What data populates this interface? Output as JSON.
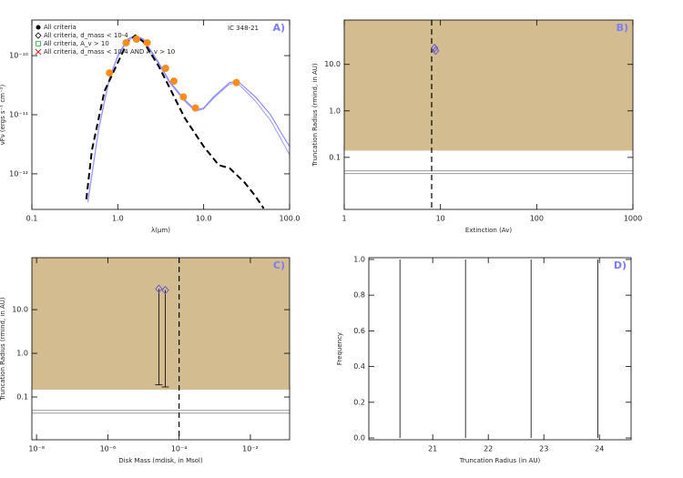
{
  "chart_data": [
    {
      "type": "line",
      "panel_label": "A)",
      "annotation": "IC 348-21",
      "xlabel": "λ(μm)",
      "ylabel": "νFν (ergs s⁻¹ cm⁻²)",
      "xlog": true,
      "ylog": true,
      "xlim": [
        0.1,
        100
      ],
      "ylim": [
        2.5e-13,
        4e-10
      ],
      "xticks": [
        0.1,
        {
          "value": 1,
          "label": "1.0"
        },
        {
          "value": 10,
          "label": "10.0"
        },
        {
          "value": 100,
          "label": "100.0"
        }
      ],
      "yticks": [
        {
          "value": 1e-12,
          "label": "10⁻¹²"
        },
        {
          "value": 1e-11,
          "label": "10⁻¹¹"
        },
        {
          "value": 1e-10,
          "label": "10⁻¹⁰"
        }
      ],
      "legend": [
        {
          "label": "All criteria",
          "marker": "dot",
          "color": "#000000"
        },
        {
          "label": "All criteria, d_mass < 10-4",
          "marker": "diamond",
          "color": "#000000"
        },
        {
          "label": "All criteria, A_v > 10",
          "marker": "square",
          "color": "#33aa33"
        },
        {
          "label": "All criteria, d_mass < 10-4 AND A_v > 10",
          "marker": "x",
          "color": "#dd2222"
        }
      ],
      "series": [
        {
          "color": "#7b7bff",
          "x": [
            0.45,
            0.6,
            0.8,
            1.0,
            1.3,
            1.6,
            2.0,
            3,
            4,
            6,
            8,
            10,
            13,
            20,
            25,
            40,
            60,
            80,
            100
          ],
          "values": [
            3.5e-13,
            5.9e-12,
            4.2e-11,
            1e-10,
            1.9e-10,
            2.2e-10,
            1.9e-10,
            7.6e-11,
            3.7e-11,
            1.8e-11,
            1.2e-11,
            1.3e-11,
            2e-11,
            3.5e-11,
            3.7e-11,
            2e-11,
            1e-11,
            4.9e-12,
            2.9e-12
          ]
        },
        {
          "color": "#9999ff",
          "x": [
            0.45,
            0.6,
            0.8,
            1.0,
            1.3,
            1.6,
            2.0,
            3,
            4,
            6,
            8,
            10,
            13,
            20,
            25,
            40,
            60,
            80,
            100
          ],
          "values": [
            3.3e-13,
            5.6e-12,
            4e-11,
            9.6e-11,
            1.8e-10,
            2.1e-10,
            1.8e-10,
            7.2e-11,
            3.5e-11,
            1.7e-11,
            1.15e-11,
            1.25e-11,
            1.9e-11,
            3.3e-11,
            3.4e-11,
            1.7e-11,
            8e-12,
            3.8e-12,
            2.1e-12
          ]
        },
        {
          "color": "#000000",
          "dash": true,
          "x": [
            0.43,
            0.5,
            0.7,
            1.0,
            1.3,
            1.6,
            2.0,
            3,
            4,
            6,
            10,
            15,
            20,
            30,
            40,
            50
          ],
          "values": [
            3.7e-13,
            2.5e-12,
            2.5e-11,
            7.6e-11,
            1.7e-10,
            2.2e-10,
            1.7e-10,
            6.6e-11,
            2.9e-11,
            8.9e-12,
            2.9e-12,
            1.4e-12,
            1.25e-12,
            7.1e-13,
            4.2e-13,
            2.6e-13
          ]
        },
        {
          "color": "#ff8c1a",
          "marker": "circle",
          "x": [
            0.8,
            1.25,
            1.65,
            2.2,
            3.6,
            4.5,
            5.8,
            8.0,
            24
          ],
          "values": [
            5.1e-11,
            1.65e-10,
            1.9e-10,
            1.65e-10,
            6.1e-11,
            3.7e-11,
            2e-11,
            1.3e-11,
            3.5e-11
          ]
        }
      ]
    },
    {
      "type": "scatter",
      "panel_label": "B)",
      "xlabel": "Extinction (Av)",
      "ylabel": "Truncation Radius (rmind, in AU)",
      "xlog": true,
      "ylog": true,
      "xlim": [
        1,
        1000
      ],
      "ylim": [
        0.0076,
        90
      ],
      "xticks": [
        1,
        10,
        100,
        1000
      ],
      "yticks": [
        0.1,
        {
          "value": 1,
          "label": "1.0"
        },
        {
          "value": 10,
          "label": "10.0"
        }
      ],
      "shade_min": 0.14,
      "hline": 0.048,
      "vline": 8.1,
      "series": [
        {
          "color": "#6a5acd",
          "x": [
            8.7,
            8.9
          ],
          "values": [
            22.5,
            19.7
          ]
        }
      ]
    },
    {
      "type": "scatter",
      "panel_label": "C)",
      "xlabel": "Disk Mass (mdisk, in Msol)",
      "ylabel": "Truncation Radius (rmind, in AU)",
      "xlog": true,
      "ylog": true,
      "xlim": [
        7.4e-09,
        0.126
      ],
      "ylim": [
        0.0105,
        155
      ],
      "xticks": [
        {
          "value": 1e-08,
          "label": "10⁻⁸"
        },
        {
          "value": 1e-06,
          "label": "10⁻⁶"
        },
        {
          "value": 0.0001,
          "label": "10⁻⁴"
        },
        {
          "value": 0.01,
          "label": "10⁻²"
        }
      ],
      "yticks": [
        0.1,
        {
          "value": 1,
          "label": "1.0"
        },
        {
          "value": 10,
          "label": "10.0"
        }
      ],
      "shade_min": 0.147,
      "hline": 0.046,
      "vline": 0.0001,
      "series": [
        {
          "color": "#6a5acd",
          "x": [
            2.7e-05,
            4.1e-05
          ],
          "values": [
            30,
            28
          ],
          "lower": [
            0.19,
            0.17
          ]
        }
      ]
    },
    {
      "type": "stem",
      "panel_label": "D)",
      "xlabel": "Truncation Radius (in AU)",
      "ylabel": "Frequency",
      "xlim": [
        19.85,
        24.57
      ],
      "ylim": [
        -0.01,
        1.01
      ],
      "xticks": [
        21,
        22,
        23,
        24
      ],
      "yticks": [
        {
          "value": 0,
          "label": "0.0"
        },
        0.2,
        0.4,
        0.6,
        0.8,
        {
          "value": 1,
          "label": "1.0"
        }
      ],
      "x": [
        20.41,
        21.59,
        22.77,
        23.97
      ],
      "values": [
        1,
        1,
        1,
        1
      ]
    }
  ]
}
